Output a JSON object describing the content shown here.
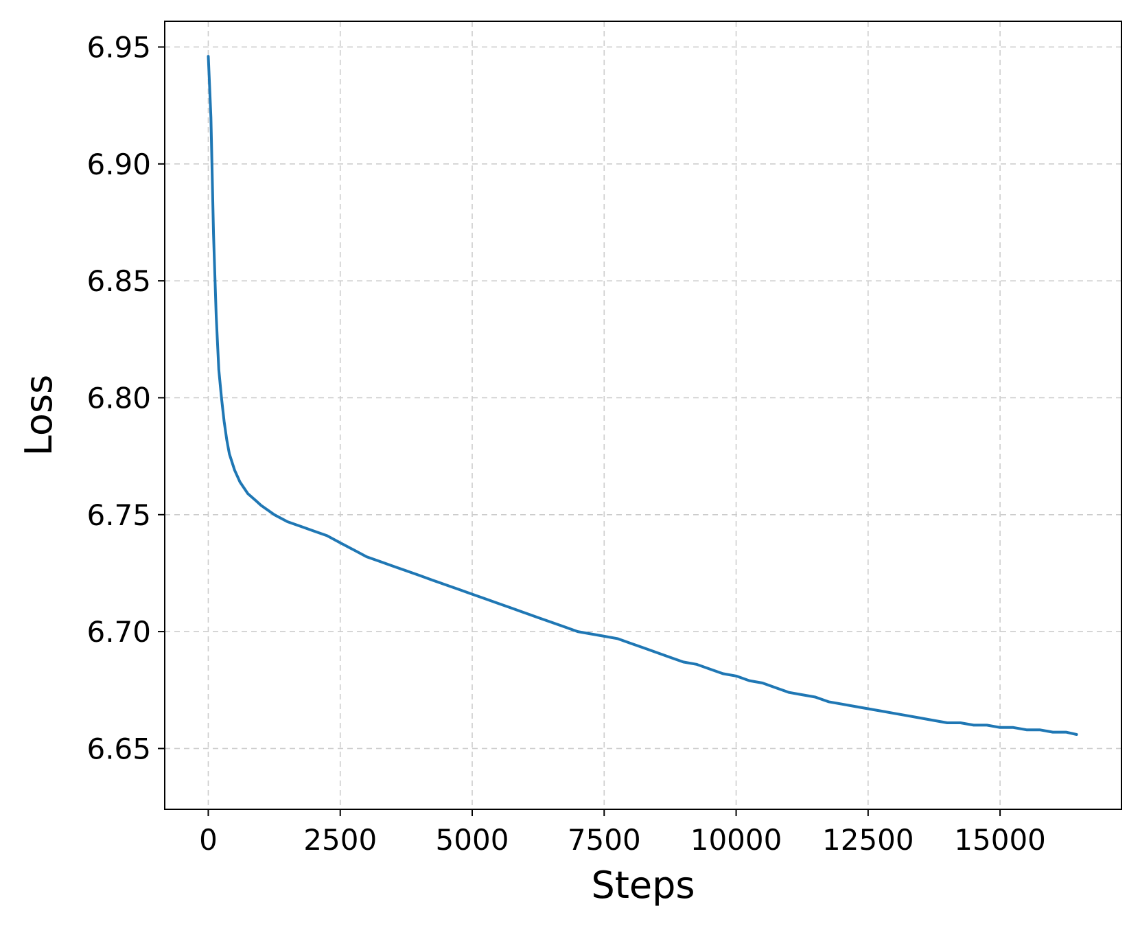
{
  "chart_data": {
    "type": "line",
    "title": "",
    "xlabel": "Steps",
    "ylabel": "Loss",
    "xlim": [
      -825,
      17300
    ],
    "ylim": [
      6.624,
      6.961
    ],
    "xticks": [
      0,
      2500,
      5000,
      7500,
      10000,
      12500,
      15000
    ],
    "xtick_labels": [
      "0",
      "2500",
      "5000",
      "7500",
      "10000",
      "12500",
      "15000"
    ],
    "yticks": [
      6.65,
      6.7,
      6.75,
      6.8,
      6.85,
      6.9,
      6.95
    ],
    "ytick_labels": [
      "6.65",
      "6.70",
      "6.75",
      "6.80",
      "6.85",
      "6.90",
      "6.95"
    ],
    "grid": true,
    "legend": "none",
    "series": [
      {
        "color": "#1f77b4",
        "x": [
          0,
          50,
          100,
          150,
          200,
          250,
          300,
          350,
          400,
          500,
          600,
          750,
          900,
          1000,
          1250,
          1500,
          1750,
          2000,
          2250,
          2500,
          2750,
          3000,
          3250,
          3500,
          3750,
          4000,
          4250,
          4500,
          4750,
          5000,
          5250,
          5500,
          5750,
          6000,
          6250,
          6500,
          6750,
          7000,
          7250,
          7500,
          7750,
          8000,
          8250,
          8500,
          8750,
          9000,
          9250,
          9500,
          9750,
          10000,
          10250,
          10500,
          10750,
          11000,
          11250,
          11500,
          11750,
          12000,
          12250,
          12500,
          12750,
          13000,
          13250,
          13500,
          13750,
          14000,
          14250,
          14500,
          14750,
          15000,
          15250,
          15500,
          15750,
          16000,
          16250,
          16450
        ],
        "y": [
          6.946,
          6.92,
          6.87,
          6.835,
          6.812,
          6.8,
          6.79,
          6.782,
          6.776,
          6.769,
          6.764,
          6.759,
          6.756,
          6.754,
          6.75,
          6.747,
          6.745,
          6.743,
          6.741,
          6.738,
          6.735,
          6.732,
          6.73,
          6.728,
          6.726,
          6.724,
          6.722,
          6.72,
          6.718,
          6.716,
          6.714,
          6.712,
          6.71,
          6.708,
          6.706,
          6.704,
          6.702,
          6.7,
          6.699,
          6.698,
          6.697,
          6.695,
          6.693,
          6.691,
          6.689,
          6.687,
          6.686,
          6.684,
          6.682,
          6.681,
          6.679,
          6.678,
          6.676,
          6.674,
          6.673,
          6.672,
          6.67,
          6.669,
          6.668,
          6.667,
          6.666,
          6.665,
          6.664,
          6.663,
          6.662,
          6.661,
          6.661,
          6.66,
          6.66,
          6.659,
          6.659,
          6.658,
          6.658,
          6.657,
          6.657,
          6.656
        ]
      }
    ]
  }
}
